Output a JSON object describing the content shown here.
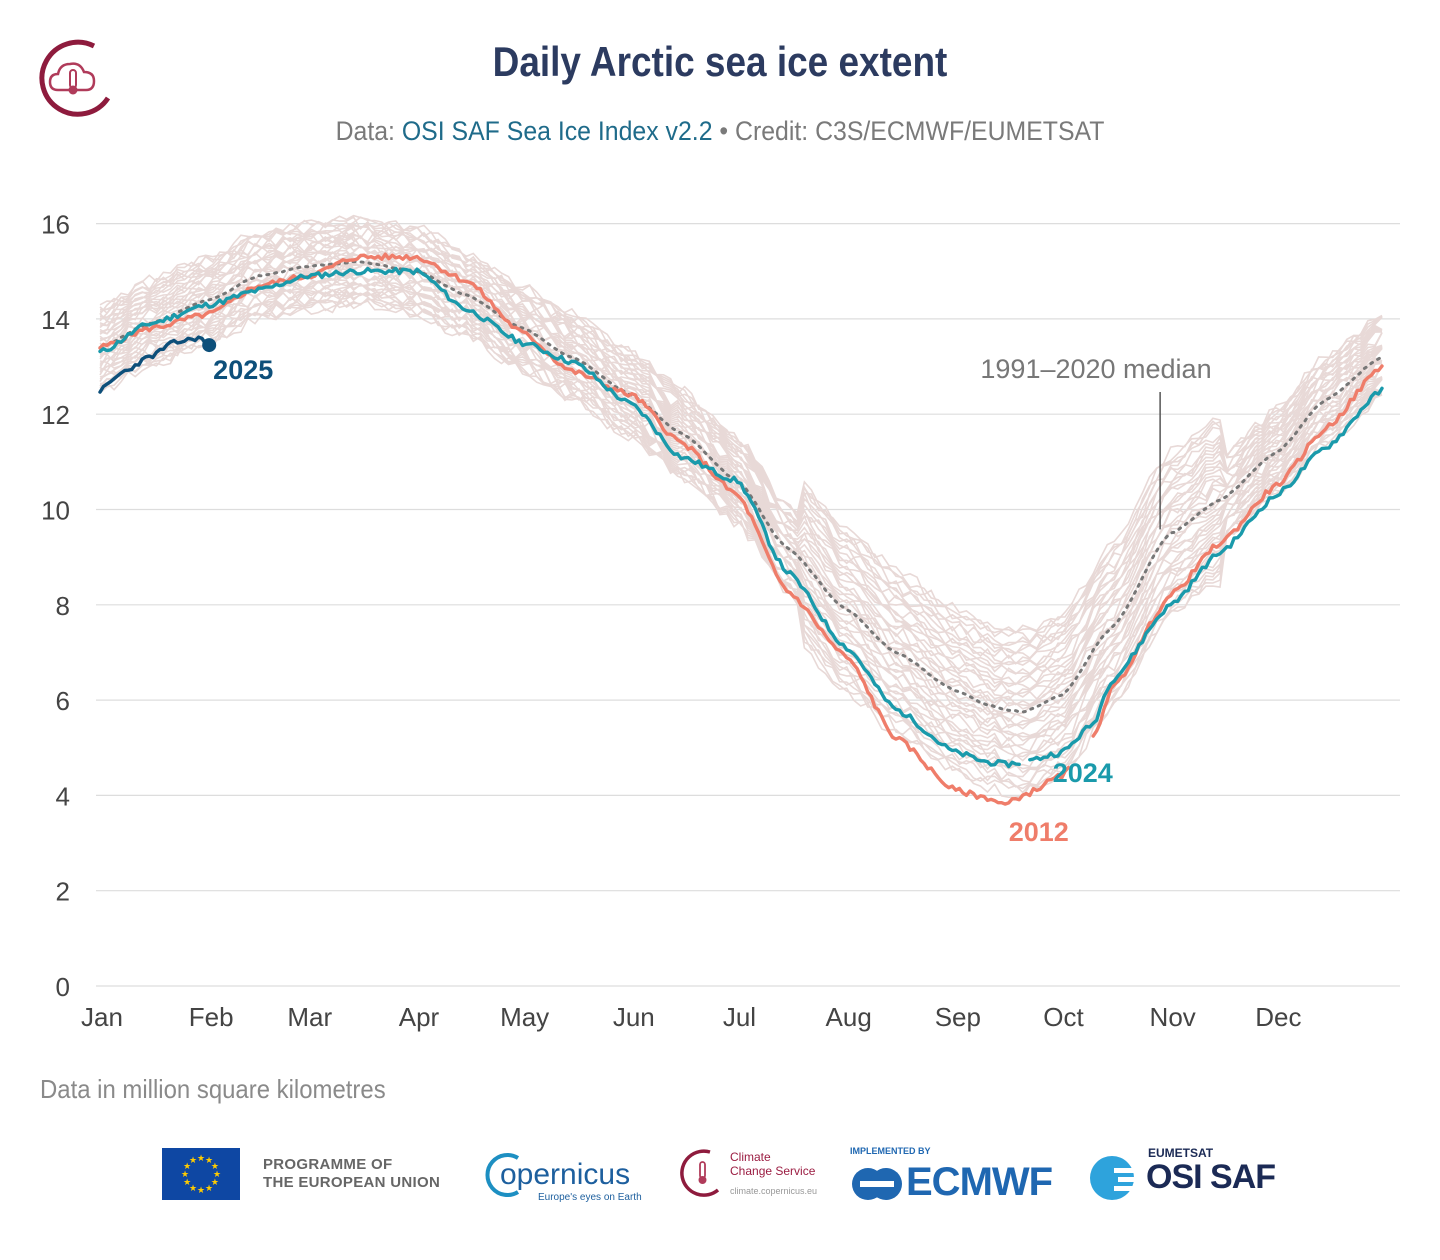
{
  "header": {
    "title": "Daily Arctic sea ice extent",
    "subtitle_prefix": "Data: ",
    "subtitle_source": "OSI SAF Sea Ice Index v2.2",
    "subtitle_credit": " • Credit: C3S/ECMWF/EUMETSAT"
  },
  "note": "Data in million square kilometres",
  "footer": {
    "eu_line1": "PROGRAMME OF",
    "eu_line2": "THE EUROPEAN UNION",
    "copernicus_name": "opernicus",
    "copernicus_tagline": "Europe's eyes on Earth",
    "ccs_line1": "Climate",
    "ccs_line2": "Change Service",
    "ccs_url": "climate.copernicus.eu",
    "ecmwf_implemented": "IMPLEMENTED BY",
    "ecmwf_name": "ECMWF",
    "osi_top": "EUMETSAT",
    "osi_name": "OSI SAF"
  },
  "colors": {
    "title": "#2c3b60",
    "source_link": "#1f6b8a",
    "background_years": "#e8d9d7",
    "median": "#777777",
    "y2012": "#ef7d6a",
    "y2024": "#1a9aab",
    "y2025": "#0d4f7a"
  },
  "chart_data": {
    "type": "line",
    "title": "Daily Arctic sea ice extent",
    "ylabel": "",
    "xlabel": "",
    "ylim": [
      0,
      16.6
    ],
    "yticks": [
      0,
      2,
      4,
      6,
      8,
      10,
      12,
      14,
      16
    ],
    "month_labels": [
      "Jan",
      "Feb",
      "Mar",
      "Apr",
      "May",
      "Jun",
      "Jul",
      "Aug",
      "Sep",
      "Oct",
      "Nov",
      "Dec"
    ],
    "grid": true,
    "annotations": {
      "median_label": "1991–2020 median",
      "label_2025": "2025",
      "label_2024": "2024",
      "label_2012": "2012"
    },
    "series": [
      {
        "name": "1991–2020 median",
        "style": "dotted",
        "x": [
          "Jan 1",
          "Jan 15",
          "Feb 1",
          "Feb 15",
          "Mar 1",
          "Mar 15",
          "Apr 1",
          "Apr 15",
          "May 1",
          "May 15",
          "Jun 1",
          "Jun 15",
          "Jul 1",
          "Jul 15",
          "Aug 1",
          "Aug 15",
          "Sep 1",
          "Sep 10",
          "Sep 15",
          "Sep 20",
          "Oct 1",
          "Oct 15",
          "Nov 1",
          "Nov 15",
          "Dec 1",
          "Dec 15",
          "Dec 31"
        ],
        "values": [
          13.4,
          13.9,
          14.4,
          14.9,
          15.1,
          15.2,
          15.0,
          14.5,
          13.8,
          13.2,
          12.4,
          11.6,
          10.6,
          9.2,
          7.9,
          7.0,
          6.2,
          5.9,
          5.8,
          5.75,
          6.1,
          7.5,
          9.5,
          10.2,
          11.2,
          12.3,
          13.2
        ]
      },
      {
        "name": "2012",
        "x": [
          "Jan 1",
          "Jan 15",
          "Feb 1",
          "Feb 15",
          "Mar 1",
          "Mar 15",
          "Apr 1",
          "Apr 15",
          "May 1",
          "May 15",
          "Jun 1",
          "Jun 15",
          "Jul 1",
          "Jul 15",
          "Aug 1",
          "Aug 15",
          "Sep 1",
          "Sep 10",
          "Sep 15",
          "Sep 20",
          "Oct 1",
          "Oct 10",
          "Oct 15",
          "Nov 1",
          "Nov 15",
          "Dec 1",
          "Dec 15",
          "Dec 31"
        ],
        "values": [
          13.4,
          13.8,
          14.1,
          14.7,
          14.9,
          15.3,
          15.3,
          14.8,
          13.7,
          12.9,
          12.4,
          11.4,
          10.3,
          8.3,
          6.9,
          5.2,
          4.1,
          3.95,
          3.8,
          4.0,
          4.4,
          5.2,
          6.2,
          8.2,
          9.3,
          10.5,
          11.7,
          13.0
        ]
      },
      {
        "name": "2024",
        "x": [
          "Jan 1",
          "Jan 15",
          "Feb 1",
          "Feb 15",
          "Mar 1",
          "Mar 15",
          "Apr 1",
          "Apr 15",
          "May 1",
          "May 15",
          "Jun 1",
          "Jun 15",
          "Jul 1",
          "Jul 15",
          "Aug 1",
          "Aug 15",
          "Sep 1",
          "Sep 10",
          "Sep 15",
          "Sep 20",
          "Oct 1",
          "Oct 10",
          "Oct 15",
          "Nov 1",
          "Nov 15",
          "Dec 1",
          "Dec 15",
          "Dec 31"
        ],
        "values": [
          13.3,
          13.9,
          14.3,
          14.6,
          14.9,
          15.0,
          15.0,
          14.2,
          13.5,
          13.1,
          12.2,
          11.1,
          10.6,
          8.7,
          7.1,
          5.8,
          4.9,
          4.7,
          4.65,
          4.7,
          4.9,
          5.5,
          6.4,
          8.0,
          9.1,
          10.3,
          11.3,
          12.5
        ]
      },
      {
        "name": "2025",
        "x": [
          "Jan 1",
          "Jan 8",
          "Jan 15",
          "Jan 22",
          "Jan 29",
          "Feb 1"
        ],
        "values": [
          12.5,
          12.9,
          13.2,
          13.5,
          13.6,
          13.45
        ]
      }
    ]
  }
}
